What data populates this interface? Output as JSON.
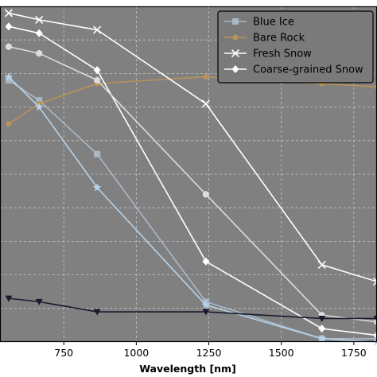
{
  "chart_data": {
    "type": "line",
    "xlabel": "Wavelength [nm]",
    "ylabel": "",
    "title": "",
    "xlim": [
      530,
      1830
    ],
    "ylim": [
      0.0,
      1.0
    ],
    "xticks": [
      750,
      1000,
      1250,
      1500,
      1750
    ],
    "xtick_labels": [
      "750",
      "1000",
      "1250",
      "1500",
      "1750"
    ],
    "grid": true,
    "legend_position": "top-right",
    "plot_background": "#808080",
    "series": [
      {
        "name": "Blue Ice",
        "color": "#a9b8c8",
        "marker": "square",
        "in_legend": true,
        "x": [
          560,
          665,
          865,
          1240,
          1640,
          1830
        ],
        "y": [
          0.78,
          0.72,
          0.56,
          0.12,
          0.01,
          0.01
        ]
      },
      {
        "name": "Bare Rock",
        "color": "#b8935a",
        "marker": "circle",
        "in_legend": true,
        "x": [
          560,
          665,
          865,
          1240,
          1640,
          1830
        ],
        "y": [
          0.65,
          0.71,
          0.77,
          0.79,
          0.77,
          0.76
        ]
      },
      {
        "name": "Fresh Snow",
        "color": "#ffffff",
        "marker": "x",
        "in_legend": true,
        "x": [
          560,
          665,
          865,
          1240,
          1640,
          1830
        ],
        "y": [
          0.98,
          0.96,
          0.93,
          0.71,
          0.23,
          0.18
        ]
      },
      {
        "name": "Coarse-grained Snow",
        "color": "#ffffff",
        "marker": "diamond",
        "in_legend": true,
        "x": [
          560,
          665,
          865,
          1240,
          1640,
          1830
        ],
        "y": [
          0.94,
          0.92,
          0.81,
          0.24,
          0.04,
          0.02
        ]
      },
      {
        "name": "",
        "color": "#dcdcdc",
        "marker": "hexagon",
        "in_legend": false,
        "x": [
          560,
          665,
          865,
          1240,
          1640,
          1830
        ],
        "y": [
          0.88,
          0.86,
          0.78,
          0.44,
          0.08,
          0.06
        ]
      },
      {
        "name": "",
        "color": "#b7d3e8",
        "marker": "star",
        "in_legend": false,
        "x": [
          560,
          665,
          865,
          1240,
          1640,
          1830
        ],
        "y": [
          0.79,
          0.7,
          0.46,
          0.11,
          0.01,
          0.0
        ]
      },
      {
        "name": "",
        "color": "#1a1a2e",
        "marker": "triangle-down",
        "in_legend": false,
        "x": [
          560,
          665,
          865,
          1240,
          1640,
          1830
        ],
        "y": [
          0.13,
          0.12,
          0.09,
          0.09,
          0.07,
          0.07
        ]
      }
    ]
  }
}
